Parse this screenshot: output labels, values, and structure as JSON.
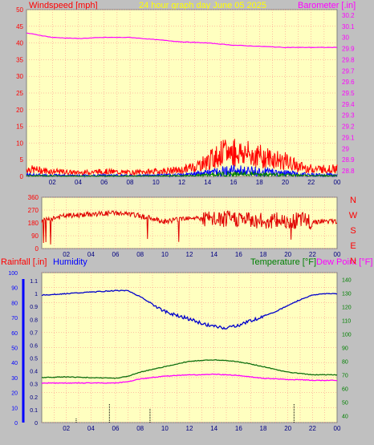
{
  "header": {
    "windspeed_label": "Windspeed [mph]",
    "graph_title": "24 hour graph day   June 05 2025",
    "barometer_label": "Barometer [.in]"
  },
  "lower_header": {
    "rainfall_label": "Rainfall [.in]",
    "humidity_label": "Humidity",
    "temperature_label": "Temperature [°F]",
    "dewpoint_label": "Dew Point [°F]"
  },
  "colors": {
    "plot_bg": "#ffffc0",
    "frame_bg": "#c0c0c0",
    "grid": "#ff8080",
    "wind_gust": "#ff0000",
    "wind_avg": "#0000ff",
    "wind_low": "#008000",
    "barometer": "#ff00ff",
    "direction": "#e00000",
    "humidity": "#0000cc",
    "temperature": "#107010",
    "dewpoint": "#ff00ff",
    "rain": "#0000ff",
    "title": "#ffff00"
  },
  "chart_data": [
    {
      "type": "line",
      "x_ticks": [
        "02",
        "04",
        "06",
        "08",
        "10",
        "12",
        "14",
        "16",
        "18",
        "20",
        "22",
        "00"
      ],
      "y_left_ticks": [
        "50",
        "45",
        "40",
        "35",
        "30",
        "25",
        "20",
        "15",
        "10",
        "5",
        "0"
      ],
      "ylim_left": [
        0,
        50
      ],
      "y_right_ticks": [
        "30.2",
        "30.1",
        "30",
        "29.9",
        "29.8",
        "29.7",
        "29.6",
        "29.5",
        "29.4",
        "29.3",
        "29.2",
        "29.1",
        "29",
        "28.9",
        "28.8"
      ],
      "ylim_right": [
        28.75,
        30.25
      ],
      "series": [
        {
          "name": "Windspeed",
          "axis": "left",
          "x": [
            0,
            2,
            4,
            6,
            8,
            10,
            12,
            13,
            14,
            15,
            16,
            17,
            18,
            19,
            20,
            21,
            22,
            24
          ],
          "y": [
            3,
            2,
            1.5,
            2,
            1.5,
            2,
            2.5,
            4,
            6,
            9,
            10,
            9,
            8,
            7,
            6,
            4,
            3,
            3
          ]
        },
        {
          "name": "Barometer",
          "axis": "right",
          "x": [
            0,
            2,
            4,
            6,
            8,
            10,
            12,
            14,
            16,
            18,
            20,
            22,
            24
          ],
          "y": [
            30.04,
            30.0,
            29.99,
            30.0,
            30.0,
            29.98,
            29.96,
            29.95,
            29.93,
            29.92,
            29.91,
            29.91,
            29.91
          ]
        }
      ],
      "grid": true
    },
    {
      "type": "scatter",
      "x_ticks": [
        "02",
        "04",
        "06",
        "08",
        "10",
        "12",
        "14",
        "16",
        "18",
        "20",
        "22",
        "00"
      ],
      "y_left_ticks": [
        "360",
        "270",
        "180",
        "90",
        "0"
      ],
      "ylim_left": [
        0,
        360
      ],
      "y_right_ticks": [
        "N",
        "W",
        "S",
        "E",
        "N"
      ],
      "series": [
        {
          "name": "Wind direction",
          "x": [
            0,
            2,
            4,
            6,
            8,
            10,
            12,
            14,
            16,
            18,
            20,
            22,
            24
          ],
          "y": [
            200,
            230,
            240,
            250,
            230,
            190,
            220,
            200,
            210,
            190,
            200,
            190,
            190
          ]
        }
      ],
      "grid": true
    },
    {
      "type": "line",
      "x_ticks": [
        "02",
        "04",
        "06",
        "08",
        "10",
        "12",
        "14",
        "16",
        "18",
        "20",
        "22",
        "00"
      ],
      "y_left_ticks": [
        "100",
        "90",
        "80",
        "70",
        "60",
        "50",
        "40",
        "30",
        "20",
        "10",
        "0"
      ],
      "y_left2_ticks": [
        "1.1",
        "1",
        "0.9",
        "0.8",
        "0.7",
        "0.6",
        "0.5",
        "0.4",
        "0.3",
        "0.2",
        "0.1",
        "0"
      ],
      "ylim_left": [
        0,
        100
      ],
      "y_right_ticks": [
        "140",
        "130",
        "120",
        "110",
        "100",
        "90",
        "80",
        "70",
        "60",
        "50",
        "40"
      ],
      "ylim_right": [
        35,
        145
      ],
      "series": [
        {
          "name": "Humidity",
          "axis": "left",
          "x": [
            0,
            2,
            4,
            6,
            7,
            8,
            9,
            10,
            12,
            13,
            14,
            15,
            16,
            17,
            18,
            19,
            20,
            21,
            22,
            23,
            24
          ],
          "y": [
            85,
            86,
            87,
            88,
            88,
            84,
            79,
            74,
            69,
            66,
            64,
            63,
            65,
            68,
            71,
            74,
            78,
            82,
            85,
            86,
            86
          ]
        },
        {
          "name": "Temperature",
          "axis": "right",
          "x": [
            0,
            2,
            4,
            6,
            7,
            8,
            9,
            10,
            11,
            12,
            13,
            14,
            15,
            16,
            17,
            18,
            19,
            20,
            21,
            22,
            23,
            24
          ],
          "y": [
            68,
            68.5,
            68,
            67.5,
            69,
            72,
            74,
            76,
            78,
            80,
            80.5,
            81,
            80.5,
            79.5,
            78,
            76,
            74,
            72,
            71,
            70,
            70,
            70
          ]
        },
        {
          "name": "Dew Point",
          "axis": "right",
          "x": [
            0,
            2,
            4,
            6,
            7,
            8,
            9,
            10,
            12,
            13,
            14,
            15,
            16,
            17,
            18,
            19,
            20,
            21,
            22,
            23,
            24
          ],
          "y": [
            64,
            64,
            64,
            64,
            65,
            67,
            68,
            69,
            70,
            70,
            70.5,
            70,
            69.5,
            68.5,
            67.5,
            67,
            66.5,
            66.5,
            66,
            66,
            66
          ]
        },
        {
          "name": "Rainfall",
          "axis": "left2",
          "x": [
            2.8,
            5.5,
            8.8,
            20.5
          ],
          "y": [
            0.005,
            0.02,
            0.015,
            0.02
          ]
        }
      ],
      "grid": true
    }
  ]
}
